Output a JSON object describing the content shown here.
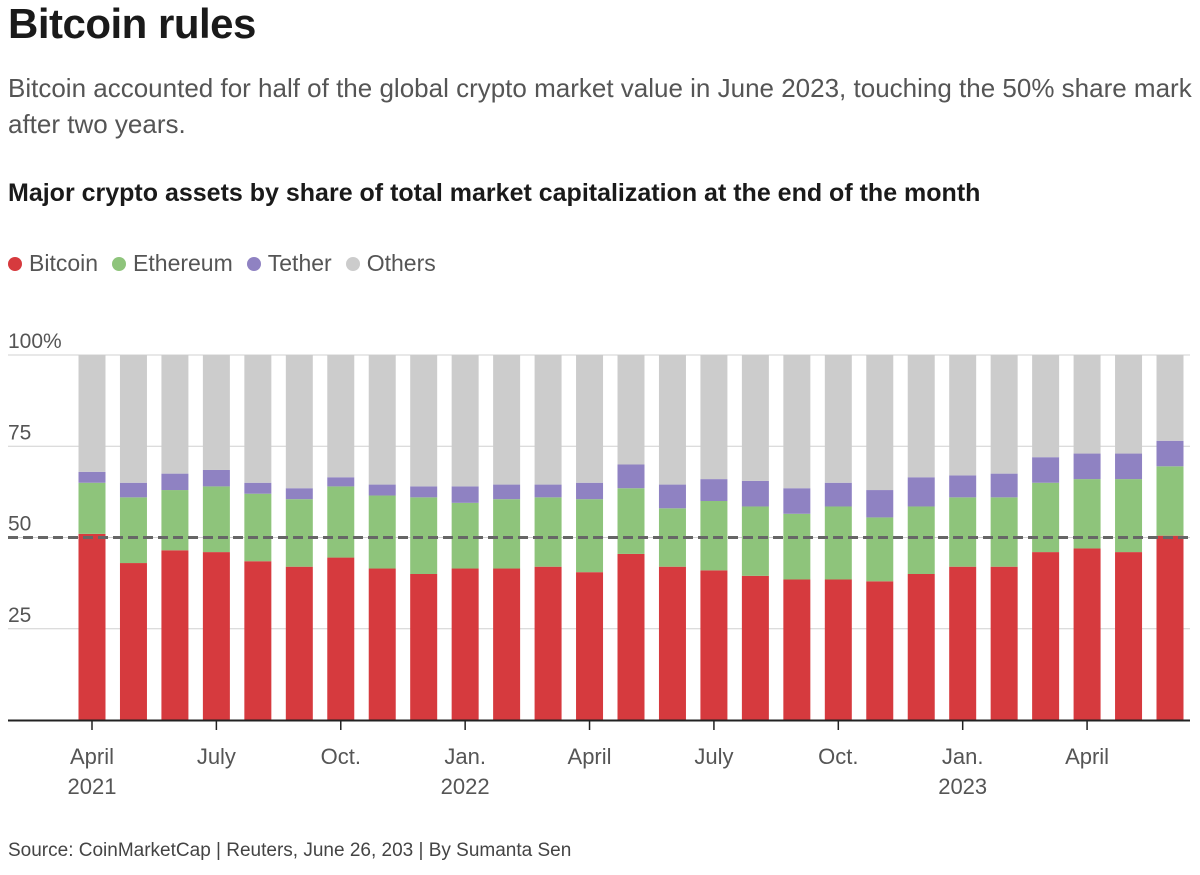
{
  "header": {
    "title": "Bitcoin rules",
    "subtitle": "Bitcoin accounted for half of the global crypto market value in June 2023, touching the 50% share mark after two years.",
    "chart_heading": "Major crypto assets by share of total market capitalization at the end of the month"
  },
  "legend": [
    {
      "label": "Bitcoin",
      "color": "#d63a3e"
    },
    {
      "label": "Ethereum",
      "color": "#8ec47b"
    },
    {
      "label": "Tether",
      "color": "#8f82c2"
    },
    {
      "label": "Others",
      "color": "#cccccc"
    }
  ],
  "footer": {
    "source": "Source: CoinMarketCap | Reuters, June 26, 203 | By Sumanta Sen"
  },
  "chart_data": {
    "type": "bar",
    "stacked": true,
    "title": "Major crypto assets by share of total market capitalization at the end of the month",
    "ylim": [
      0,
      100
    ],
    "yticks": [
      {
        "value": 100,
        "label": "100%"
      },
      {
        "value": 75,
        "label": "75"
      },
      {
        "value": 50,
        "label": "50"
      },
      {
        "value": 25,
        "label": "25"
      }
    ],
    "reference_line": {
      "value": 50,
      "style": "dashed"
    },
    "categories": [
      "Apr 2021",
      "May 2021",
      "Jun 2021",
      "Jul 2021",
      "Aug 2021",
      "Sep 2021",
      "Oct 2021",
      "Nov 2021",
      "Dec 2021",
      "Jan 2022",
      "Feb 2022",
      "Mar 2022",
      "Apr 2022",
      "May 2022",
      "Jun 2022",
      "Jul 2022",
      "Aug 2022",
      "Sep 2022",
      "Oct 2022",
      "Nov 2022",
      "Dec 2022",
      "Jan 2023",
      "Feb 2023",
      "Mar 2023",
      "Apr 2023",
      "May 2023",
      "Jun 2023"
    ],
    "x_tick_labels": [
      {
        "index": 0,
        "line1": "April",
        "line2": "2021"
      },
      {
        "index": 3,
        "line1": "July",
        "line2": ""
      },
      {
        "index": 6,
        "line1": "Oct.",
        "line2": ""
      },
      {
        "index": 9,
        "line1": "Jan.",
        "line2": "2022"
      },
      {
        "index": 12,
        "line1": "April",
        "line2": ""
      },
      {
        "index": 15,
        "line1": "July",
        "line2": ""
      },
      {
        "index": 18,
        "line1": "Oct.",
        "line2": ""
      },
      {
        "index": 21,
        "line1": "Jan.",
        "line2": "2023"
      },
      {
        "index": 24,
        "line1": "April",
        "line2": ""
      }
    ],
    "series": [
      {
        "name": "Bitcoin",
        "color": "#d63a3e",
        "values": [
          51,
          43,
          46.5,
          46,
          43.5,
          42,
          44.5,
          41.5,
          40,
          41.5,
          41.5,
          42,
          40.5,
          45.5,
          42,
          41,
          39.5,
          38.5,
          38.5,
          38,
          40,
          42,
          42,
          46,
          47,
          46,
          50.5
        ]
      },
      {
        "name": "Ethereum",
        "color": "#8ec47b",
        "values": [
          14,
          18,
          16.5,
          18,
          18.5,
          18.5,
          19.5,
          20,
          21,
          18,
          19,
          19,
          20,
          18,
          16,
          19,
          19,
          18,
          20,
          17.5,
          18.5,
          19,
          19,
          19,
          19,
          20,
          19
        ]
      },
      {
        "name": "Tether",
        "color": "#8f82c2",
        "values": [
          3,
          4,
          4.5,
          4.5,
          3,
          3,
          2.5,
          3,
          3,
          4.5,
          4,
          3.5,
          4.5,
          6.5,
          6.5,
          6,
          7,
          7,
          6.5,
          7.5,
          8,
          6,
          6.5,
          7,
          7,
          7,
          7
        ]
      },
      {
        "name": "Others",
        "color": "#cccccc",
        "values": [
          32,
          35,
          32.5,
          31.5,
          35,
          36.5,
          33.5,
          35.5,
          36,
          36,
          35.5,
          35.5,
          35,
          30,
          35.5,
          34,
          34.5,
          36.5,
          35,
          37,
          33.5,
          33,
          32.5,
          28,
          27,
          27,
          23.5
        ]
      }
    ],
    "xlabel": "",
    "ylabel": ""
  }
}
